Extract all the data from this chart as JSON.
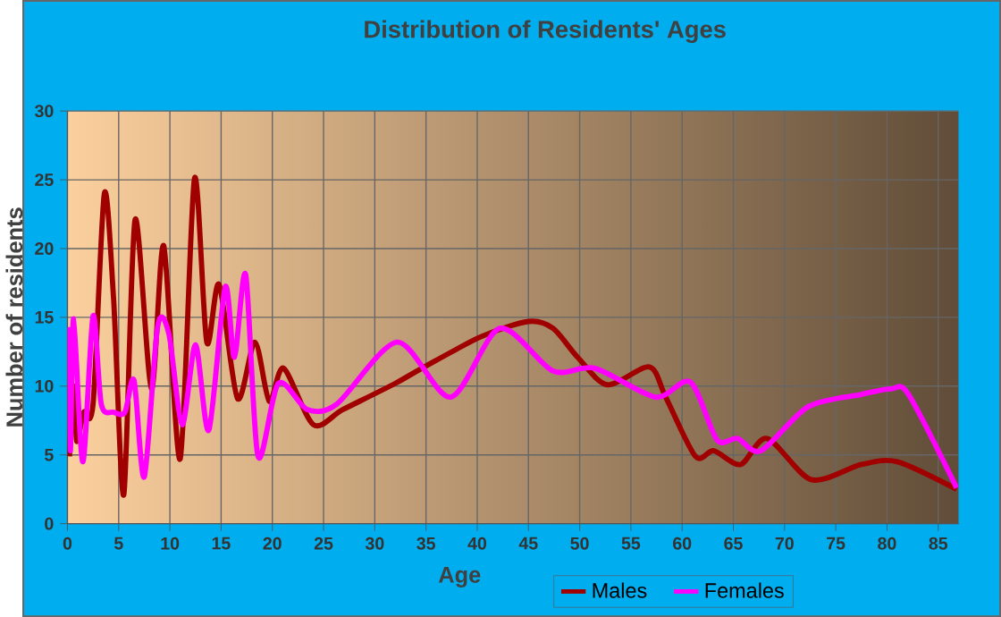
{
  "chart_data": {
    "type": "line",
    "title": "Distribution of Residents' Ages",
    "xlabel": "Age",
    "ylabel": "Number of residents",
    "xlim": [
      0,
      87
    ],
    "ylim": [
      0,
      30
    ],
    "xticks": [
      0,
      5,
      10,
      15,
      20,
      25,
      30,
      35,
      40,
      45,
      50,
      55,
      60,
      65,
      70,
      75,
      80,
      85
    ],
    "yticks": [
      0,
      5,
      10,
      15,
      20,
      25,
      30
    ],
    "grid": true,
    "legend": "bottom",
    "line_style": "solid",
    "series": [
      {
        "name": "Males",
        "color": "#a00000",
        "x": [
          0.2,
          0.6,
          0.9,
          1.6,
          2.5,
          3.6,
          4.5,
          5.5,
          6.6,
          8.2,
          9.4,
          11,
          12.4,
          13.6,
          14.8,
          16.6,
          18.3,
          19.7,
          21.1,
          24,
          26.9,
          32,
          34.6,
          40.4,
          45,
          47.4,
          49.8,
          52.7,
          56.8,
          58.4,
          61.3,
          63.1,
          65.7,
          68.3,
          72.6,
          77.5,
          81,
          86.8
        ],
        "values": [
          4.9,
          10,
          6,
          8.1,
          8.7,
          24,
          16.4,
          2.1,
          22.1,
          9.8,
          20.2,
          4.7,
          25.1,
          13.2,
          17.4,
          9.1,
          13.2,
          8.9,
          11.3,
          7.2,
          8.3,
          10.2,
          11.3,
          13.6,
          14.7,
          14.2,
          12.1,
          10.1,
          11.4,
          9.2,
          4.9,
          5.3,
          4.3,
          6.2,
          3.2,
          4.3,
          4.5,
          2.5
        ]
      },
      {
        "name": "Females",
        "color": "#ff00ff",
        "x": [
          0.2,
          0.3,
          0.6,
          1.5,
          2.5,
          3.3,
          4.5,
          5.6,
          6.5,
          7.5,
          8.8,
          9.9,
          11.2,
          12.5,
          13.8,
          15.4,
          16.3,
          17.4,
          18.6,
          20.6,
          23.4,
          26.3,
          32.2,
          37.4,
          42.2,
          47.4,
          51.5,
          57.4,
          60.8,
          63.4,
          65.4,
          67.7,
          72.3,
          77.5,
          80.4,
          82.1,
          86.8
        ],
        "values": [
          14.3,
          5.3,
          14.9,
          4.5,
          15.1,
          8.7,
          8.1,
          8.1,
          10.4,
          3.4,
          14.3,
          13.8,
          7.2,
          13,
          6.8,
          17.2,
          12.1,
          18.1,
          4.9,
          10.2,
          8.3,
          8.7,
          13.2,
          9.2,
          14.2,
          11.1,
          11.3,
          9.2,
          10.3,
          6.1,
          6.2,
          5.3,
          8.5,
          9.4,
          9.8,
          9.4,
          2.6
        ]
      }
    ]
  }
}
